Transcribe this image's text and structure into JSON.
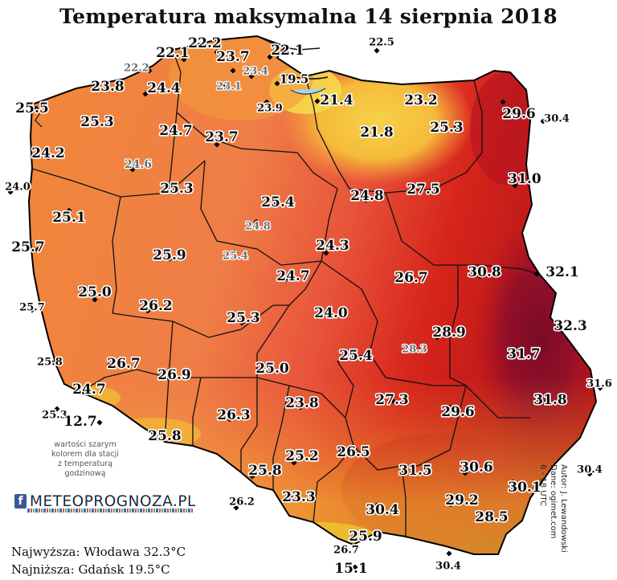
{
  "title": "Temperatura maksymalna 14 sierpnia 2018",
  "note": [
    "wartości szarym",
    "kolorem dla stacji",
    "z temperaturą",
    "godzinową"
  ],
  "logo": {
    "text": "METEOPROGNOZA.PL"
  },
  "stats": {
    "highest": "Najwyższa: Włodawa 32.3°C",
    "lowest": "Najniższa: Gdańsk 19.5°C"
  },
  "credit": [
    "Autor: J. Lewandowski",
    "Dane: ogimet.com",
    "6 - 18 UTC"
  ],
  "colors": {
    "cool": "#f4c242",
    "mild": "#f08a35",
    "warm": "#ee7a50",
    "hot": "#d81c10",
    "hottest": "#8a0e24",
    "mountain": "#f2e02a"
  },
  "stations": [
    {
      "label": "22.1",
      "grey": false
    },
    {
      "label": "22.2",
      "grey": false
    },
    {
      "label": "22.1",
      "grey": false
    },
    {
      "label": "22.5",
      "grey": false
    },
    {
      "label": "22.2",
      "grey": true
    },
    {
      "label": "23.7",
      "grey": false
    },
    {
      "label": "23.4",
      "grey": true
    },
    {
      "label": "23.8",
      "grey": false
    },
    {
      "label": "24.4",
      "grey": false
    },
    {
      "label": "23.1",
      "grey": true
    },
    {
      "label": "19.5",
      "grey": false
    },
    {
      "label": "25.5",
      "grey": false
    },
    {
      "label": "21.4",
      "grey": false
    },
    {
      "label": "23.2",
      "grey": false
    },
    {
      "label": "23.9",
      "grey": false
    },
    {
      "label": "29.6",
      "grey": false
    },
    {
      "label": "30.4",
      "grey": false
    },
    {
      "label": "25.3",
      "grey": false
    },
    {
      "label": "24.7",
      "grey": false
    },
    {
      "label": "21.8",
      "grey": false
    },
    {
      "label": "25.3",
      "grey": false
    },
    {
      "label": "23.7",
      "grey": false
    },
    {
      "label": "24.2",
      "grey": false
    },
    {
      "label": "24.6",
      "grey": true
    },
    {
      "label": "31.0",
      "grey": false
    },
    {
      "label": "24.0",
      "grey": false
    },
    {
      "label": "25.3",
      "grey": false
    },
    {
      "label": "27.5",
      "grey": false
    },
    {
      "label": "24.8",
      "grey": false
    },
    {
      "label": "25.4",
      "grey": false
    },
    {
      "label": "25.1",
      "grey": false
    },
    {
      "label": "24.8",
      "grey": true
    },
    {
      "label": "25.7",
      "grey": false
    },
    {
      "label": "25.9",
      "grey": false
    },
    {
      "label": "25.4",
      "grey": true
    },
    {
      "label": "24.3",
      "grey": false
    },
    {
      "label": "32.1",
      "grey": false
    },
    {
      "label": "30.8",
      "grey": false
    },
    {
      "label": "24.7",
      "grey": false
    },
    {
      "label": "26.7",
      "grey": false
    },
    {
      "label": "25.0",
      "grey": false
    },
    {
      "label": "25.7",
      "grey": false
    },
    {
      "label": "26.2",
      "grey": false
    },
    {
      "label": "24.0",
      "grey": false
    },
    {
      "label": "32.3",
      "grey": false
    },
    {
      "label": "25.3",
      "grey": false
    },
    {
      "label": "28.9",
      "grey": false
    },
    {
      "label": "25.8",
      "grey": false
    },
    {
      "label": "26.7",
      "grey": false
    },
    {
      "label": "28.3",
      "grey": true
    },
    {
      "label": "31.7",
      "grey": false
    },
    {
      "label": "25.4",
      "grey": false
    },
    {
      "label": "25.0",
      "grey": false
    },
    {
      "label": "26.9",
      "grey": false
    },
    {
      "label": "31.6",
      "grey": false
    },
    {
      "label": "24.7",
      "grey": false
    },
    {
      "label": "27.3",
      "grey": false
    },
    {
      "label": "23.8",
      "grey": false
    },
    {
      "label": "31.8",
      "grey": false
    },
    {
      "label": "29.6",
      "grey": false
    },
    {
      "label": "25.3",
      "grey": false
    },
    {
      "label": "12.7",
      "grey": false
    },
    {
      "label": "26.3",
      "grey": false
    },
    {
      "label": "25.8",
      "grey": false
    },
    {
      "label": "25.2",
      "grey": false
    },
    {
      "label": "26.5",
      "grey": false
    },
    {
      "label": "31.5",
      "grey": false
    },
    {
      "label": "30.6",
      "grey": false
    },
    {
      "label": "30.4",
      "grey": false
    },
    {
      "label": "25.8",
      "grey": false
    },
    {
      "label": "30.1",
      "grey": false
    },
    {
      "label": "26.2",
      "grey": false
    },
    {
      "label": "23.3",
      "grey": false
    },
    {
      "label": "30.4",
      "grey": false
    },
    {
      "label": "29.2",
      "grey": false
    },
    {
      "label": "28.5",
      "grey": false
    },
    {
      "label": "26.7",
      "grey": false
    },
    {
      "label": "25.9",
      "grey": false
    },
    {
      "label": "15.1",
      "grey": false
    },
    {
      "label": "30.4",
      "grey": false
    }
  ]
}
